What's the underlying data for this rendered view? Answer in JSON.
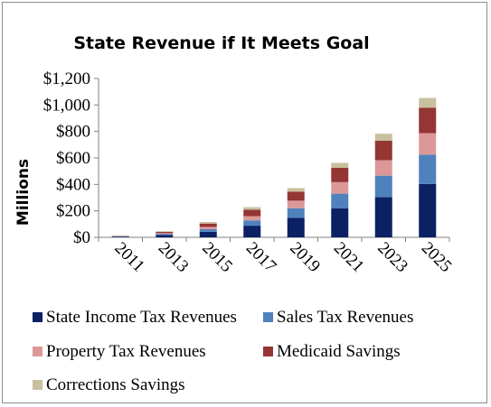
{
  "chart_data": {
    "type": "bar",
    "stacked": true,
    "title": "State Revenue if It Meets Goal",
    "ylabel": "Millions",
    "xlabel": "",
    "categories": [
      "2011",
      "2013",
      "2015",
      "2017",
      "2019",
      "2021",
      "2023",
      "2025"
    ],
    "ylim": [
      0,
      1200
    ],
    "yticks": [
      "$0",
      "$200",
      "$400",
      "$600",
      "$800",
      "$1,000",
      "$1,200"
    ],
    "ytick_values": [
      0,
      200,
      400,
      600,
      800,
      1000,
      1200
    ],
    "grid": false,
    "legend_position": "bottom",
    "series": [
      {
        "name": "State Income Tax Revenues",
        "color": "#0b2163",
        "values": [
          5,
          18,
          42,
          88,
          148,
          218,
          303,
          403
        ]
      },
      {
        "name": "Sales Tax Revenues",
        "color": "#4f81bd",
        "values": [
          2,
          8,
          20,
          40,
          72,
          112,
          163,
          222
        ]
      },
      {
        "name": "Property Tax Revenues",
        "color": "#dc9899",
        "values": [
          1,
          6,
          17,
          32,
          57,
          87,
          117,
          162
        ]
      },
      {
        "name": "Medicaid Savings",
        "color": "#943634",
        "values": [
          3,
          10,
          25,
          48,
          68,
          108,
          148,
          193
        ]
      },
      {
        "name": "Corrections Savings",
        "color": "#c9c09f",
        "values": [
          1,
          4,
          12,
          20,
          27,
          38,
          52,
          73
        ]
      }
    ]
  }
}
